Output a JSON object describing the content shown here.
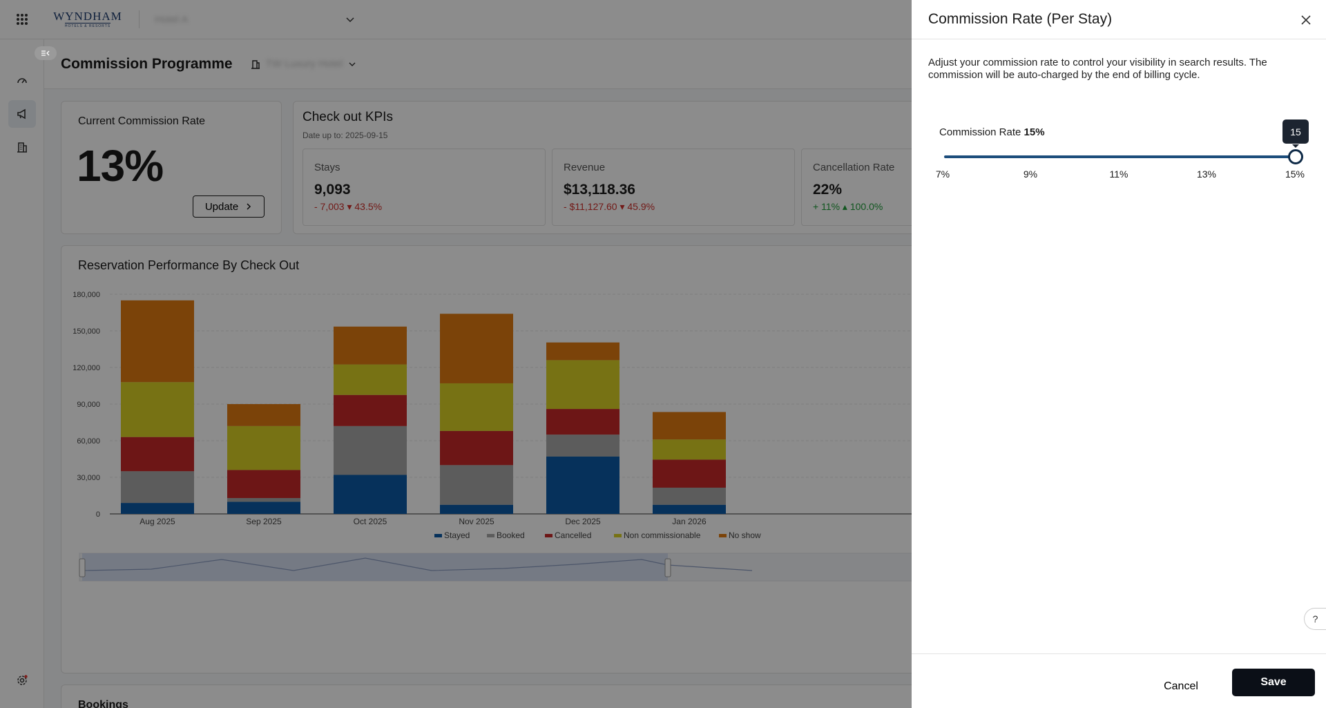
{
  "topbar": {
    "logo_word": "WYNDHAM",
    "logo_sub": "HOTELS & RESORTS",
    "property_placeholder": "Hotel A"
  },
  "page": {
    "title": "Commission Programme",
    "property_name": "TW Luxury Hotel"
  },
  "current_rate": {
    "label": "Current Commission Rate",
    "value": "13%",
    "update_label": "Update"
  },
  "kpis": {
    "title": "Check out KPIs",
    "subtitle": "Date up to: 2025-09-15",
    "items": [
      {
        "name": "Stays",
        "value": "9,093",
        "delta": "- 7,003 ▾ 43.5%",
        "trend": "neg"
      },
      {
        "name": "Revenue",
        "value": "$13,118.36",
        "delta": "- $11,127.60 ▾ 45.9%",
        "trend": "neg"
      },
      {
        "name": "Cancellation Rate",
        "value": "22%",
        "delta": "+ 11% ▴ 100.0%",
        "trend": "pos"
      }
    ]
  },
  "chart_data": {
    "type": "bar",
    "stacked": true,
    "title": "Reservation Performance By Check Out",
    "categories": [
      "Aug 2025",
      "Sep 2025",
      "Oct 2025",
      "Nov 2025",
      "Dec 2025",
      "Jan 2026"
    ],
    "ylim": [
      0,
      180000
    ],
    "yticks": [
      0,
      30000,
      60000,
      90000,
      120000,
      150000,
      180000
    ],
    "ytick_labels": [
      "0",
      "30,000",
      "60,000",
      "90,000",
      "120,000",
      "150,000",
      "180,000"
    ],
    "grid": true,
    "legend_position": "bottom",
    "series": [
      {
        "name": "Stayed",
        "color": "#0b5aa6",
        "values": [
          9000,
          10000,
          32000,
          7500,
          47000,
          7500
        ]
      },
      {
        "name": "Booked",
        "color": "#a8a8a8",
        "values": [
          26000,
          3000,
          40000,
          32500,
          18000,
          14000
        ]
      },
      {
        "name": "Cancelled",
        "color": "#c72929",
        "values": [
          28000,
          23000,
          25500,
          28000,
          21000,
          23000
        ]
      },
      {
        "name": "Non commissionable",
        "color": "#d9cf26",
        "values": [
          45000,
          36000,
          25000,
          39000,
          40000,
          16500
        ]
      },
      {
        "name": "No show",
        "color": "#e07a12",
        "values": [
          67000,
          18000,
          31000,
          57000,
          14500,
          22500
        ]
      }
    ]
  },
  "bookings": {
    "title": "Bookings"
  },
  "drawer": {
    "title": "Commission Rate (Per Stay)",
    "description": "Adjust your commission rate to control your visibility in search results. The commission will be auto-charged by the end of billing cycle.",
    "slider_label_prefix": "Commission Rate ",
    "slider_label_value": "15%",
    "slider_value": 15,
    "slider_min": 7,
    "slider_max": 15,
    "tooltip": "15",
    "ticks": [
      "7%",
      "9%",
      "11%",
      "13%",
      "15%"
    ],
    "help_icon": "?",
    "cancel_label": "Cancel",
    "save_label": "Save"
  }
}
